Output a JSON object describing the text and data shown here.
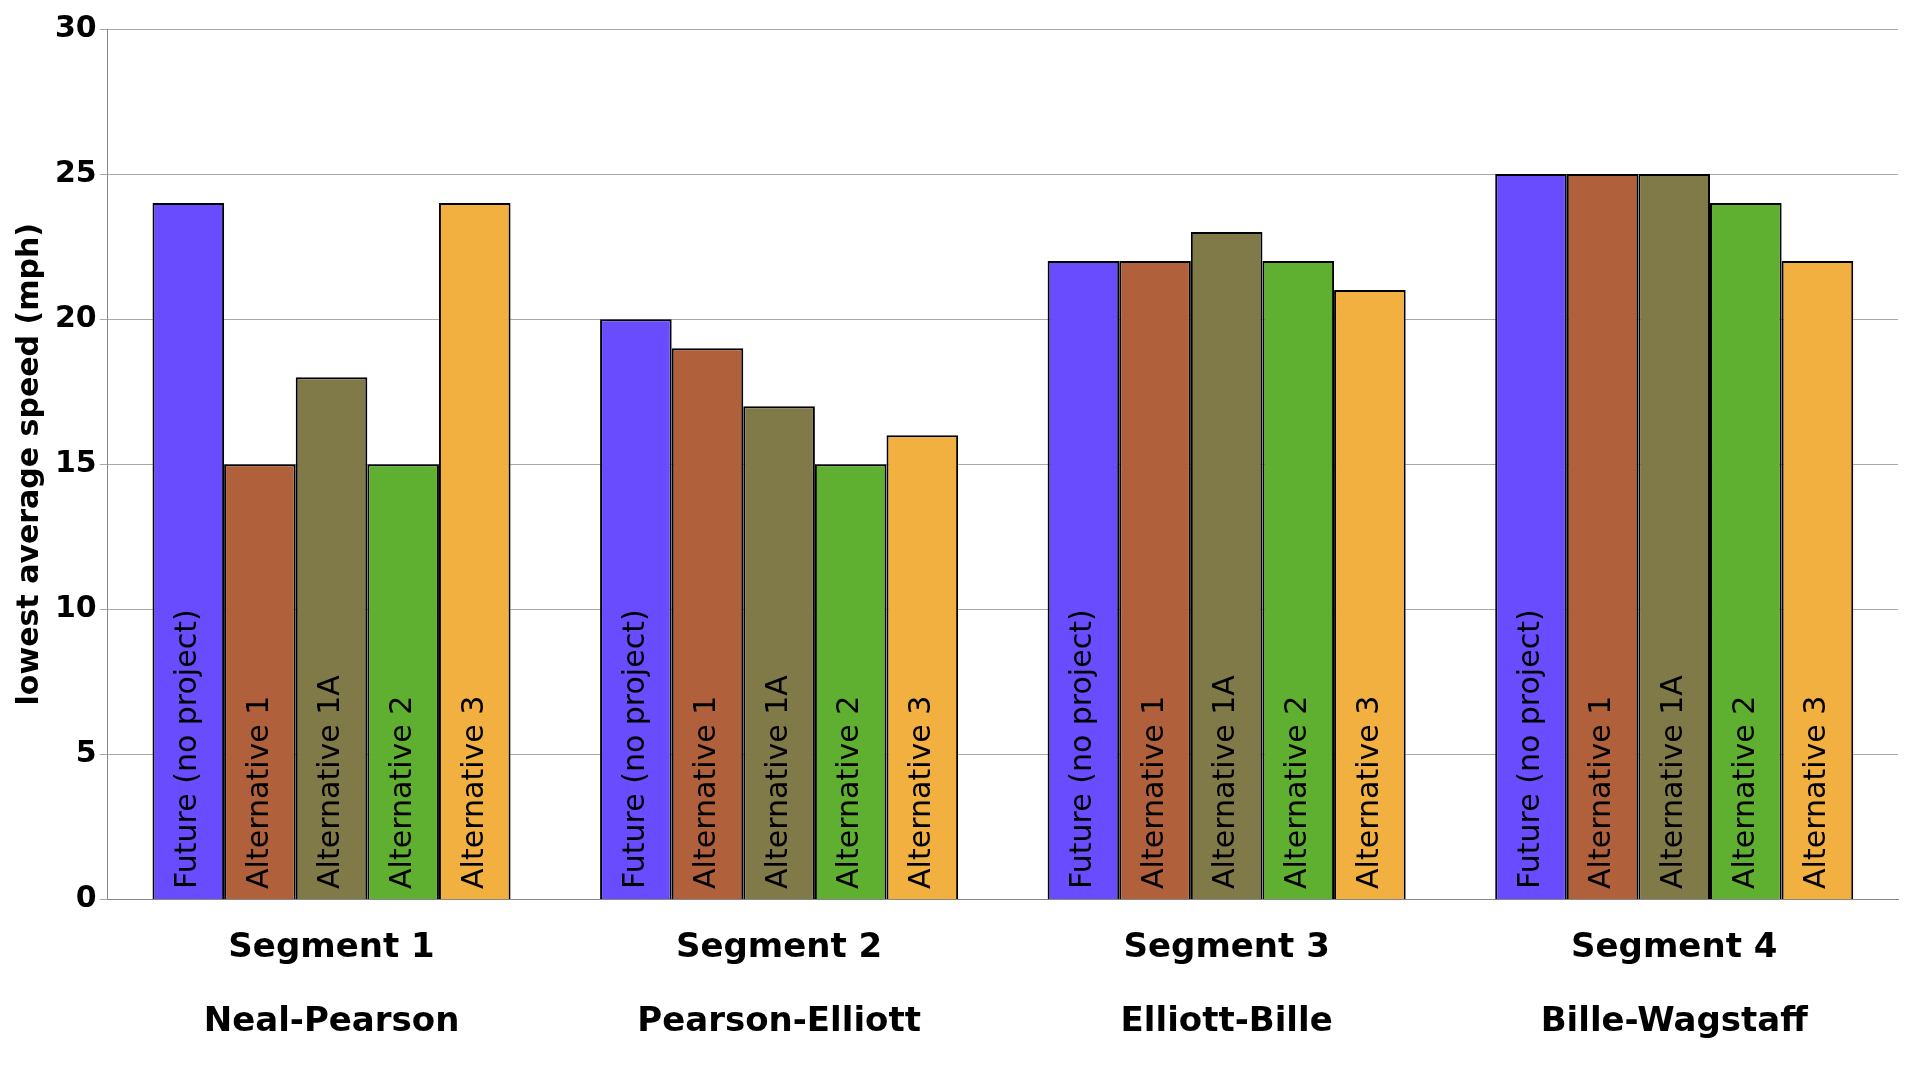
{
  "chart_data": {
    "type": "bar",
    "ylabel": "lowest average speed (mph)",
    "categories": [
      "Segment 1\nNeal-Pearson",
      "Segment 2\nPearson-Elliott",
      "Segment 3\nElliott-Bille",
      "Segment 4\nBille-Wagstaff"
    ],
    "series": [
      {
        "name": "Future (no project)",
        "color": "#6a4cff",
        "values": [
          24,
          20,
          22,
          25
        ]
      },
      {
        "name": "Alternative 1",
        "color": "#b0603a",
        "values": [
          15,
          19,
          22,
          25
        ]
      },
      {
        "name": "Alternative 1A",
        "color": "#807a48",
        "values": [
          18,
          17,
          23,
          25
        ]
      },
      {
        "name": "Alternative 2",
        "color": "#5fb030",
        "values": [
          15,
          15,
          22,
          24
        ]
      },
      {
        "name": "Alternative 3",
        "color": "#f2b040",
        "values": [
          24,
          16,
          21,
          22
        ]
      }
    ],
    "ylim": [
      0,
      30
    ],
    "yticks": [
      0,
      5,
      10,
      15,
      20,
      25,
      30
    ],
    "grid": "y",
    "legend": false
  }
}
